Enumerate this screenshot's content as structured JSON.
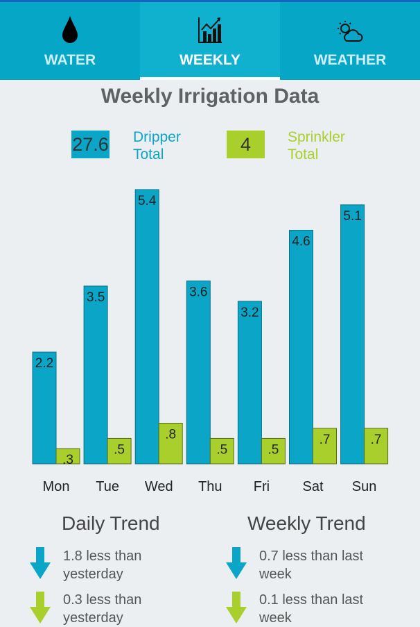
{
  "tabs": [
    {
      "label": "WATER",
      "icon": "water-drop-icon"
    },
    {
      "label": "WEEKLY",
      "icon": "bar-chart-trend-icon",
      "active": true
    },
    {
      "label": "WEATHER",
      "icon": "sun-cloud-icon"
    }
  ],
  "title": "Weekly Irrigation Data",
  "totals": {
    "dripper": {
      "value": "27.6",
      "label_line1": "Dripper",
      "label_line2": "Total"
    },
    "sprinkler": {
      "value": "4",
      "label_line1": "Sprinkler",
      "label_line2": "Total"
    }
  },
  "colors": {
    "dripper": "#0aa5c7",
    "sprinkler": "#a9cf2c",
    "header": "#06a6c6"
  },
  "chart_data": {
    "type": "bar",
    "categories": [
      "Mon",
      "Tue",
      "Wed",
      "Thu",
      "Fri",
      "Sat",
      "Sun"
    ],
    "series": [
      {
        "name": "Dripper",
        "values": [
          2.2,
          3.5,
          5.4,
          3.6,
          3.2,
          4.6,
          5.1
        ],
        "labels": [
          "2.2",
          "3.5",
          "5.4",
          "3.6",
          "3.2",
          "4.6",
          "5.1"
        ]
      },
      {
        "name": "Sprinkler",
        "values": [
          0.3,
          0.5,
          0.8,
          0.5,
          0.5,
          0.7,
          0.7
        ],
        "labels": [
          ".3",
          ".5",
          ".8",
          ".5",
          ".5",
          ".7",
          ".7"
        ]
      }
    ],
    "ylim": [
      0,
      5.4
    ],
    "grid": false
  },
  "daily_trend": {
    "title": "Daily Trend",
    "items": [
      {
        "line1": "1.8 less than",
        "line2": "yesterday"
      },
      {
        "line1": "0.3 less than",
        "line2": "yesterday"
      }
    ]
  },
  "weekly_trend": {
    "title": "Weekly Trend",
    "items": [
      {
        "line1": "0.7 less than last",
        "line2": "week"
      },
      {
        "line1": "0.1 less than last",
        "line2": "week"
      }
    ]
  }
}
